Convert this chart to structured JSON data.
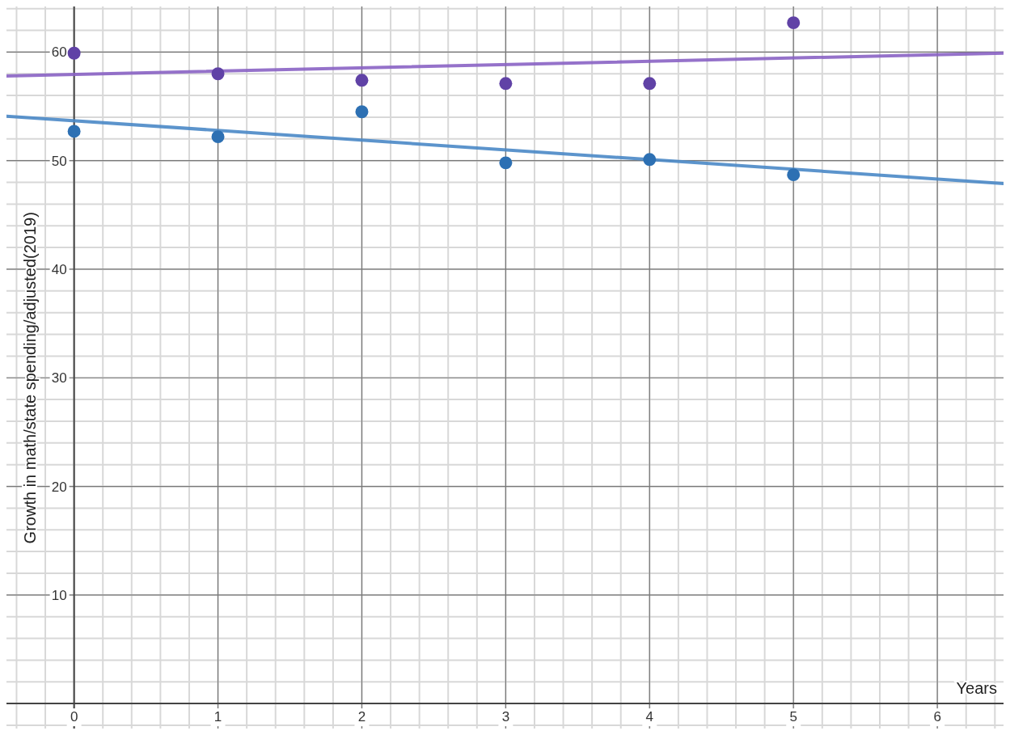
{
  "chart_data": {
    "type": "scatter",
    "xlabel": "Years",
    "ylabel": "Growth in math/state spending/adjusted(2019)",
    "xlim": [
      -0.47,
      6.46
    ],
    "ylim": [
      -2.3,
      64.2
    ],
    "xticks": [
      0,
      1,
      2,
      3,
      4,
      5,
      6
    ],
    "yticks": [
      10,
      20,
      30,
      40,
      50,
      60
    ],
    "grid": true,
    "marker": "circle",
    "series": [
      {
        "color": "#6042a6",
        "x": [
          0,
          1,
          2,
          3,
          4,
          5
        ],
        "values": [
          59.9,
          58.0,
          57.4,
          57.1,
          57.1,
          62.7
        ]
      },
      {
        "color": "#2d70b3",
        "x": [
          0,
          1,
          2,
          3,
          4,
          5
        ],
        "values": [
          52.7,
          52.2,
          54.5,
          49.8,
          50.1,
          48.7
        ]
      },
      {
        "type": "line",
        "marker": "none",
        "color": "#8a63c4",
        "x": [
          -0.47,
          6.46
        ],
        "values": [
          57.8,
          59.9
        ]
      },
      {
        "type": "line",
        "marker": "none",
        "color": "#4a88c7",
        "x": [
          -0.47,
          6.46
        ],
        "values": [
          54.1,
          47.9
        ]
      }
    ]
  }
}
